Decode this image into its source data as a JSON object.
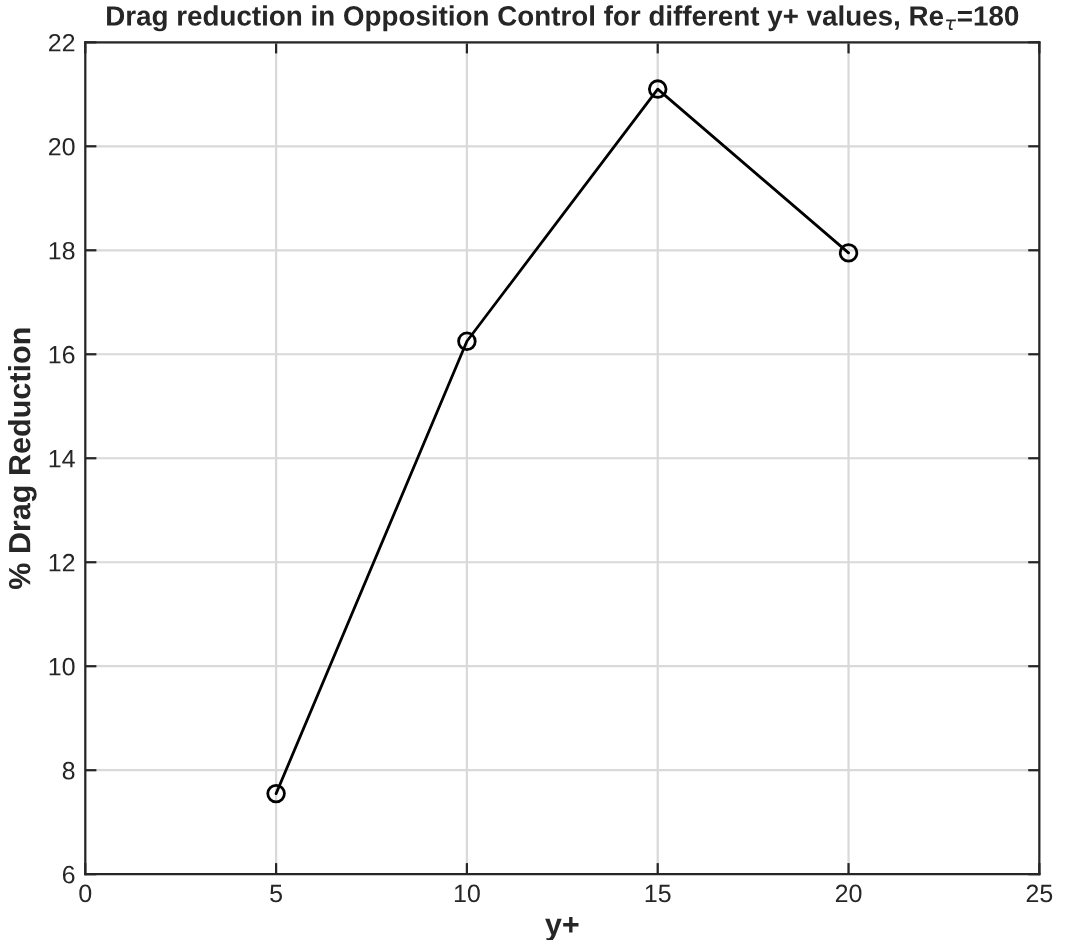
{
  "chart_data": {
    "type": "line",
    "title": "Drag reduction in Opposition Control for different y+ values, Re$_{τ}$=180",
    "xlabel": "y+",
    "ylabel": "% Drag Reduction",
    "x": [
      5,
      10,
      15,
      20
    ],
    "series": [
      {
        "color": "#000000",
        "values": [
          7.55,
          16.25,
          21.1,
          17.95
        ]
      }
    ],
    "xlim": [
      0,
      25
    ],
    "xticks": [
      0,
      5,
      10,
      15,
      20,
      25
    ],
    "ylim": [
      6,
      22
    ],
    "yticks": [
      6,
      8,
      10,
      12,
      14,
      16,
      18,
      20,
      22
    ],
    "grid": true,
    "marker": "circle",
    "line_style": "solid"
  }
}
